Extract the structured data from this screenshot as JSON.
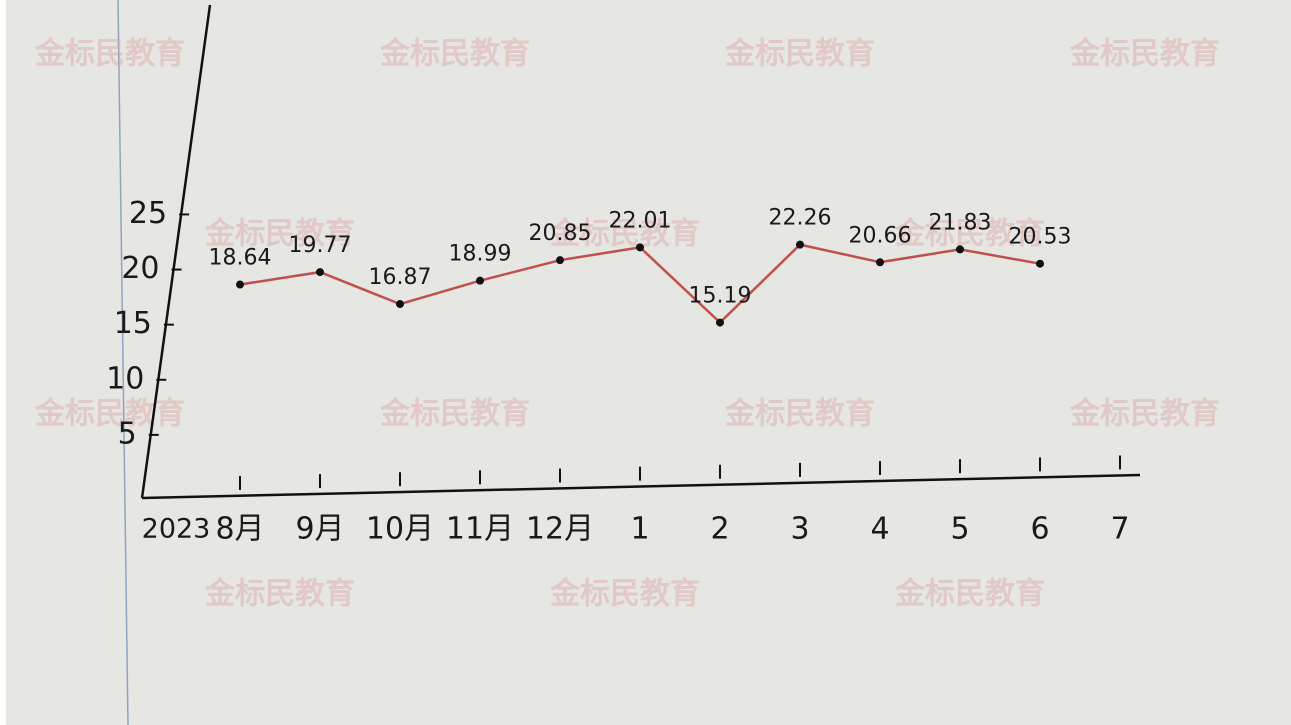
{
  "chart_data": {
    "type": "line",
    "year": "2023",
    "watermark": "金标民教育",
    "categories": [
      "8月",
      "9月",
      "10月",
      "11月",
      "12月",
      "1",
      "2",
      "3",
      "4",
      "5",
      "6",
      "7"
    ],
    "series": [
      {
        "color": "#c0504d",
        "values": [
          18.64,
          19.77,
          16.87,
          18.99,
          20.85,
          22.01,
          15.19,
          22.26,
          20.66,
          21.83,
          20.53,
          null
        ]
      }
    ],
    "ylim": [
      0,
      44
    ],
    "yticks": [
      5,
      10,
      15,
      20,
      25
    ],
    "grid": false
  }
}
